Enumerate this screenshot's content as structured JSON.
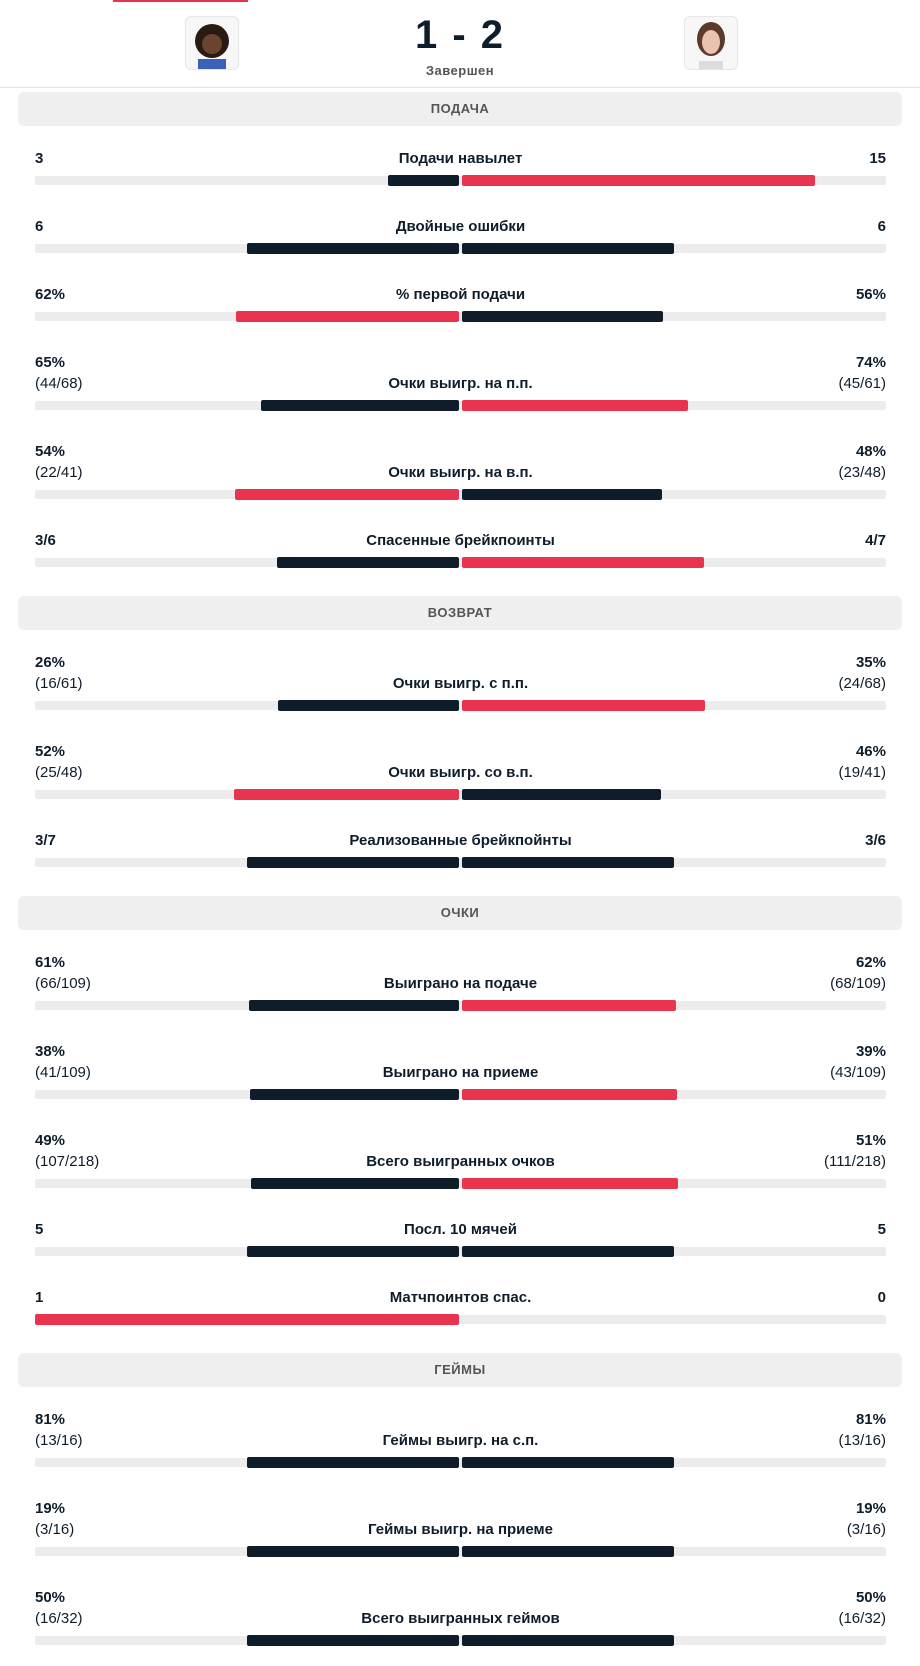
{
  "header": {
    "score": "1 - 2",
    "status": "Завершен"
  },
  "sections": [
    {
      "title": "Подача",
      "rows": [
        {
          "label": "Подачи навылет",
          "home": "3",
          "away": "15"
        },
        {
          "label": "Двойные ошибки",
          "home": "6",
          "away": "6"
        },
        {
          "label": "% первой подачи",
          "home": "62%",
          "away": "56%"
        },
        {
          "label": "Очки выигр. на п.п.",
          "home": "65%",
          "home_detail": "(44/68)",
          "away": "74%",
          "away_detail": "(45/61)"
        },
        {
          "label": "Очки выигр. на в.п.",
          "home": "54%",
          "home_detail": "(22/41)",
          "away": "48%",
          "away_detail": "(23/48)"
        },
        {
          "label": "Спасенные брейкпоинты",
          "home": "3/6",
          "away": "4/7"
        }
      ]
    },
    {
      "title": "Возврат",
      "rows": [
        {
          "label": "Очки выигр. с п.п.",
          "home": "26%",
          "home_detail": "(16/61)",
          "away": "35%",
          "away_detail": "(24/68)"
        },
        {
          "label": "Очки выигр. со в.п.",
          "home": "52%",
          "home_detail": "(25/48)",
          "away": "46%",
          "away_detail": "(19/41)"
        },
        {
          "label": "Реализованные брейкпойнты",
          "home": "3/7",
          "away": "3/6"
        }
      ]
    },
    {
      "title": "Очки",
      "rows": [
        {
          "label": "Выиграно на подаче",
          "home": "61%",
          "home_detail": "(66/109)",
          "away": "62%",
          "away_detail": "(68/109)"
        },
        {
          "label": "Выиграно на приеме",
          "home": "38%",
          "home_detail": "(41/109)",
          "away": "39%",
          "away_detail": "(43/109)"
        },
        {
          "label": "Всего выигранных очков",
          "home": "49%",
          "home_detail": "(107/218)",
          "away": "51%",
          "away_detail": "(111/218)"
        },
        {
          "label": "Посл. 10 мячей",
          "home": "5",
          "away": "5"
        },
        {
          "label": "Матчпоинтов спас.",
          "home": "1",
          "away": "0"
        }
      ]
    },
    {
      "title": "Геймы",
      "rows": [
        {
          "label": "Геймы выигр. на с.п.",
          "home": "81%",
          "home_detail": "(13/16)",
          "away": "81%",
          "away_detail": "(13/16)"
        },
        {
          "label": "Геймы выигр. на приеме",
          "home": "19%",
          "home_detail": "(3/16)",
          "away": "19%",
          "away_detail": "(3/16)"
        },
        {
          "label": "Всего выигранных геймов",
          "home": "50%",
          "home_detail": "(16/32)",
          "away": "50%",
          "away_detail": "(16/32)"
        }
      ]
    }
  ]
}
